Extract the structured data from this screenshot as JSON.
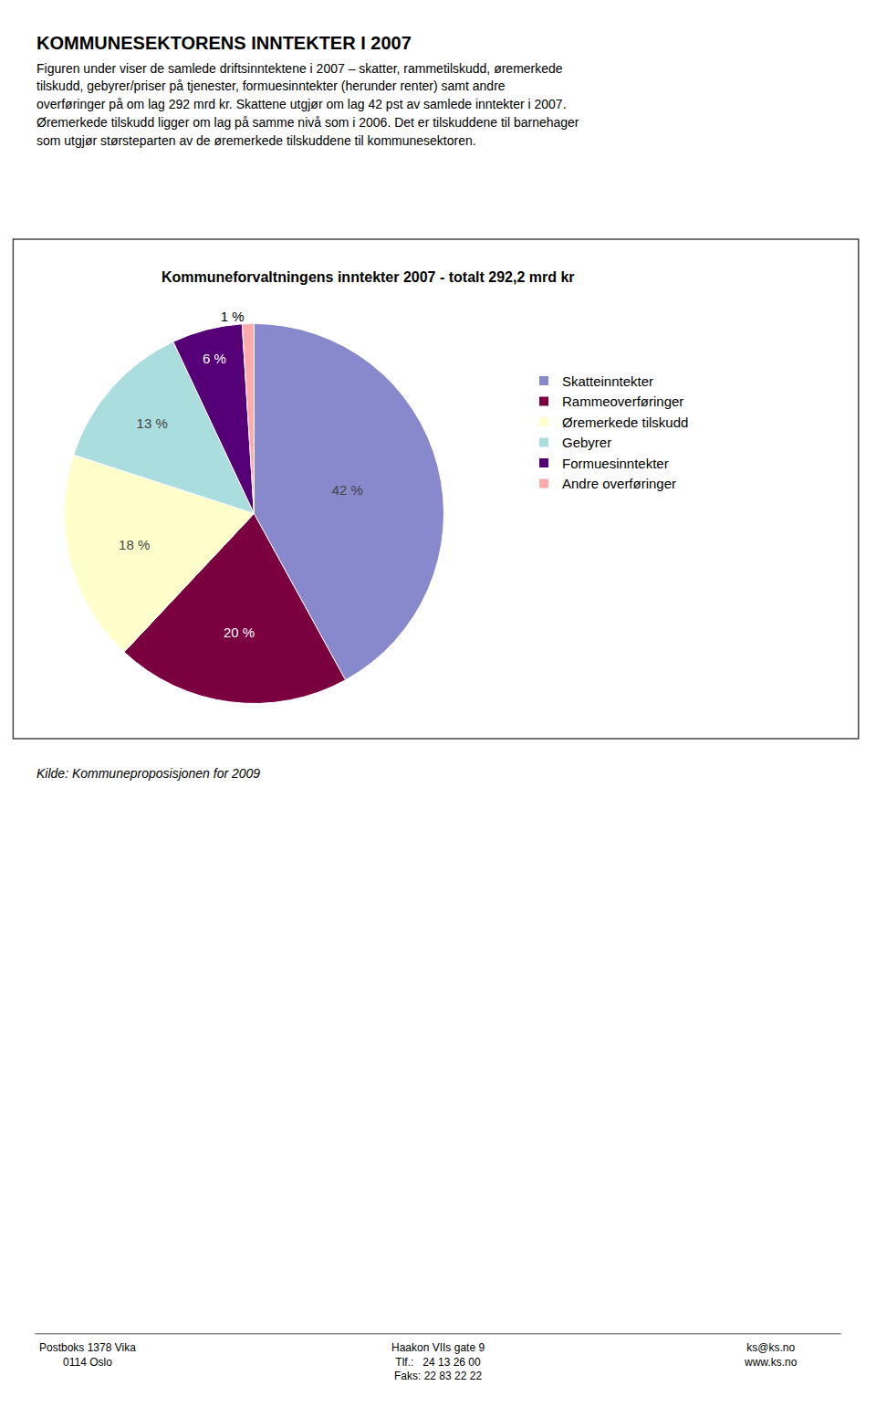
{
  "chart_data": {
    "type": "pie",
    "title": "Kommuneforvaltningens inntekter 2007 - totalt 292,2 mrd kr",
    "categories": [
      "Skatteinntekter",
      "Rammeoverføringer",
      "Øremerkede tilskudd",
      "Gebyrer",
      "Formuesinntekter",
      "Andre overføringer"
    ],
    "values": [
      42,
      20,
      18,
      13,
      6,
      1
    ],
    "value_labels": [
      "42 %",
      "20 %",
      "18 %",
      "13 %",
      "6 %",
      "1 %"
    ],
    "data_labels": true,
    "colors": [
      "#8888cc",
      "#7a0040",
      "#ffffcc",
      "#aadddd",
      "#550077",
      "#ffaaaa"
    ],
    "legend": "right",
    "annotations": [
      "KOMMUNESEKTORENS INNTEKTER I 2007",
      "Figuren under viser de samlede driftsinntektene i 2007 – skatter, rammetilskudd, øremerkede",
      "tilskudd, gebyrer/priser på tjenester, formuesinntekter (herunder renter) samt andre",
      "overføringer på om lag 292 mrd kr. Skattene utgjør om lag 42 pst av samlede inntekter i 2007.",
      "Øremerkede tilskudd ligger om lag på samme nivå som i 2006. Det er tilskuddene til barnehager",
      "som utgjør størsteparten av de øremerkede tilskuddene til kommunesektoren.",
      "Kilde: Kommuneproposisjonen for 2009",
      "Postboks 1378 Vika\n0114 Oslo",
      "Haakon VIIs gate 9\nTlf.:   24 13 26 00\nFaks: 22 83 22 22",
      "ks@ks.no\nwww.ks.no"
    ]
  }
}
